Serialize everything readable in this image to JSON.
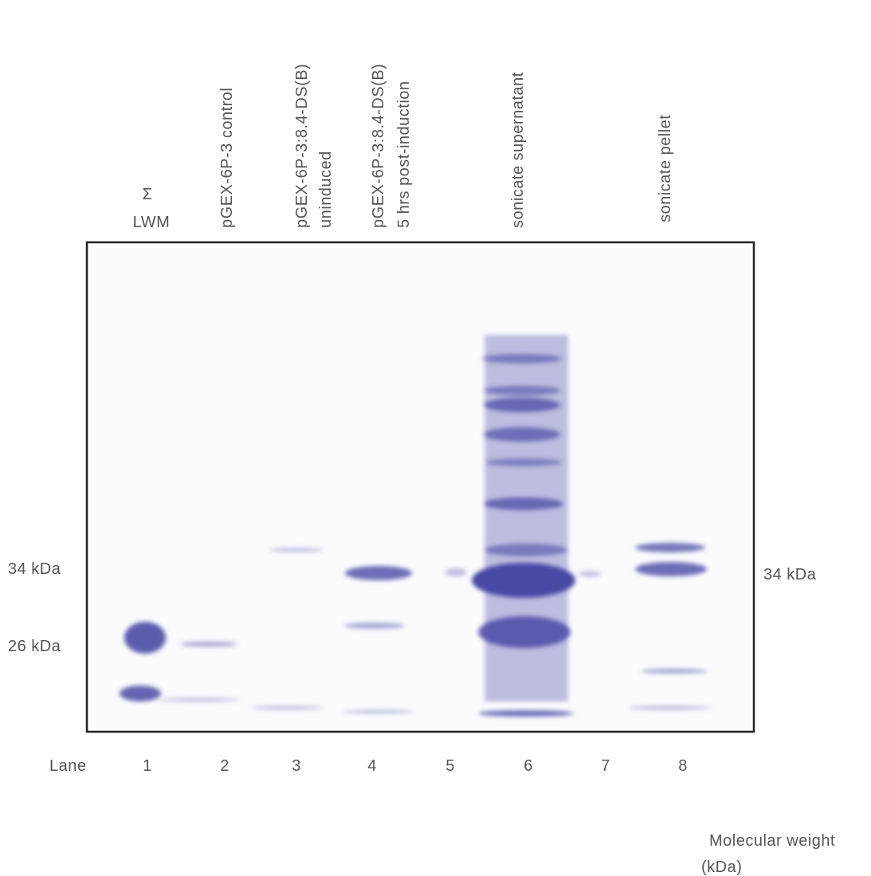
{
  "lane_headers": [
    {
      "lines": [
        "Σ",
        "LWM"
      ]
    },
    {
      "lines": [
        "pGEX-6P-3 control"
      ]
    },
    {
      "lines": [
        "pGEX-6P-3:8.4-DS(B)",
        "uninduced"
      ]
    },
    {
      "lines": [
        "pGEX-6P-3:8.4-DS(B)",
        "5 hrs post-induction"
      ]
    },
    {
      "lines": [
        "sonicate supernatant"
      ]
    },
    {
      "lines": [
        "sonicate pellet"
      ]
    }
  ],
  "lane_label": "Lane",
  "lanes": [
    "1",
    "2",
    "3",
    "4",
    "5",
    "6",
    "7",
    "8"
  ],
  "markers_left": [
    "34 kDa",
    "26 kDa"
  ],
  "markers_right": [
    "34 kDa"
  ],
  "axis_note": [
    "Molecular weight",
    "(kDa)"
  ]
}
